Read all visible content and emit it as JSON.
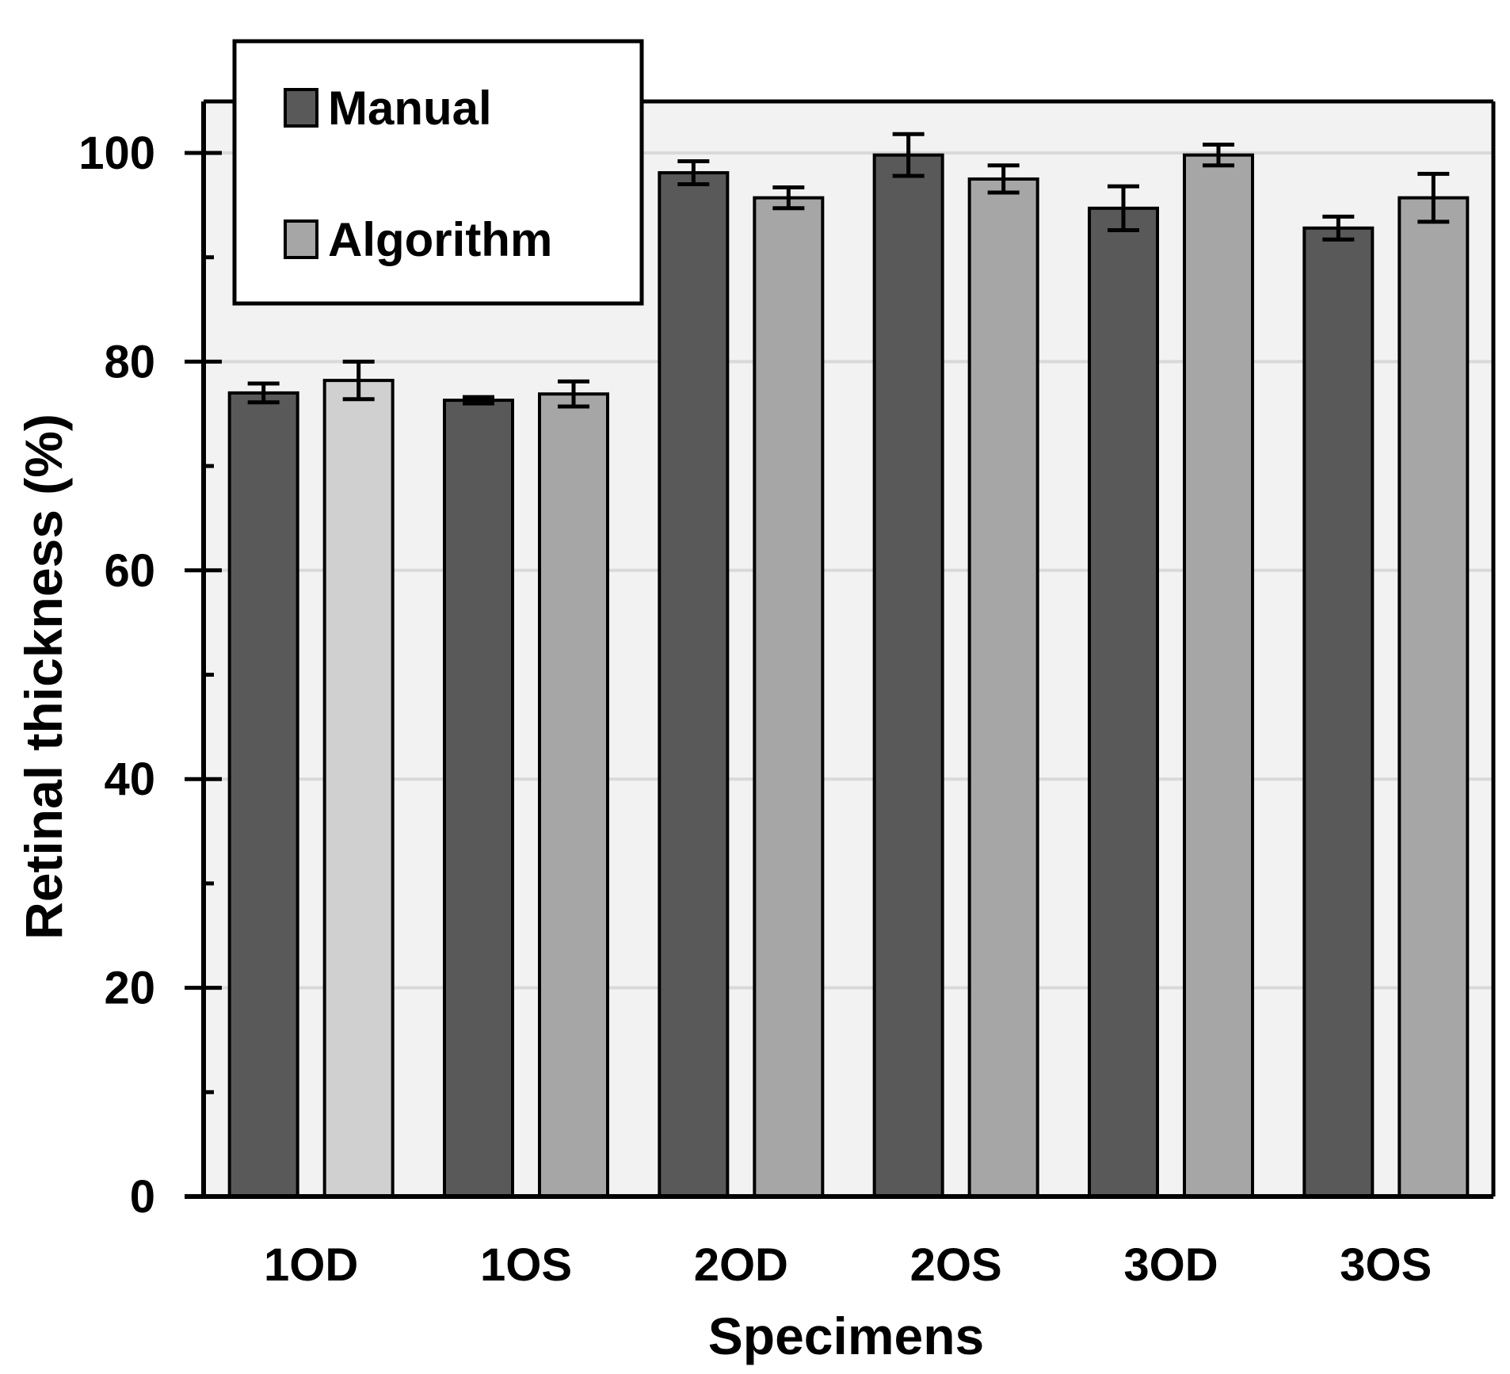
{
  "chart_data": {
    "type": "bar",
    "xlabel": "Specimens",
    "ylabel": "Retinal thickness (%)",
    "ylim": [
      0,
      100
    ],
    "yticks": [
      0,
      20,
      40,
      60,
      80,
      100
    ],
    "grid": true,
    "legend_position": "top-left",
    "categories": [
      "1OD",
      "1OS",
      "2OD",
      "2OS",
      "3OD",
      "3OS"
    ],
    "series": [
      {
        "name": "Manual",
        "color": "#595959",
        "values": [
          77.0,
          76.3,
          98.1,
          99.8,
          94.7,
          92.8
        ],
        "errors": [
          0.9,
          0.3,
          1.1,
          2.0,
          2.1,
          1.1
        ]
      },
      {
        "name": "Algorithm",
        "color": "#a6a6a6",
        "first_bar_color": "#d0d0d0",
        "values": [
          78.2,
          76.9,
          95.7,
          97.5,
          99.8,
          95.7
        ],
        "errors": [
          1.8,
          1.2,
          1.0,
          1.3,
          1.0,
          2.3
        ]
      }
    ]
  }
}
